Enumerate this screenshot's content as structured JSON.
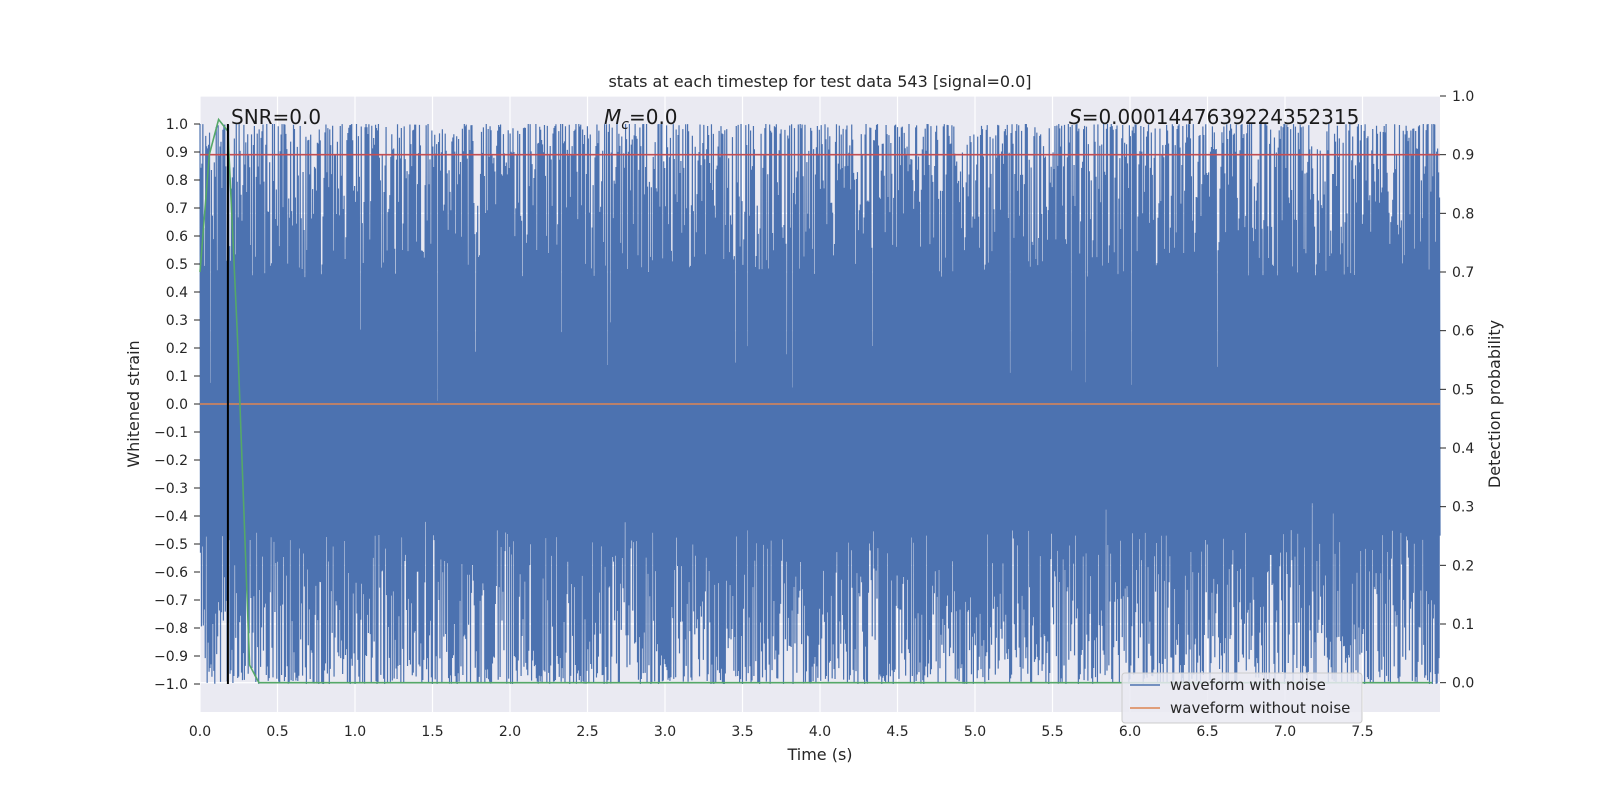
{
  "chart_data": {
    "type": "line",
    "title": "stats at each timestep for test data 543 [signal=0.0]",
    "xlabel": "Time (s)",
    "ylabel": "Whitened strain",
    "y2label": "Detection probability",
    "xlim": [
      0.0,
      8.0
    ],
    "ylim": [
      -1.1,
      1.1
    ],
    "y2lim": [
      -0.05,
      1.0
    ],
    "x_ticks": [
      "0.0",
      "0.5",
      "1.0",
      "1.5",
      "2.0",
      "2.5",
      "3.0",
      "3.5",
      "4.0",
      "4.5",
      "5.0",
      "5.5",
      "6.0",
      "6.5",
      "7.0",
      "7.5"
    ],
    "y_ticks": [
      "1.0",
      "0.9",
      "0.8",
      "0.7",
      "0.6",
      "0.5",
      "0.4",
      "0.3",
      "0.2",
      "0.1",
      "0.0",
      "−0.1",
      "−0.2",
      "−0.3",
      "−0.4",
      "−0.5",
      "−0.6",
      "−0.7",
      "−0.8",
      "−0.9",
      "−1.0"
    ],
    "y2_ticks": [
      "1.0",
      "0.9",
      "0.8",
      "0.7",
      "0.6",
      "0.5",
      "0.4",
      "0.3",
      "0.2",
      "0.1",
      "0.0"
    ],
    "grid": true,
    "legend_position": "lower-right",
    "annotations": {
      "snr": "SNR=0.0",
      "mc_symbol": "M",
      "mc_sub": "c",
      "mc_value": "=0.0",
      "s_symbol": "S",
      "s_value": "=0.0001447639224352315"
    },
    "marker_line_x": 0.18,
    "series": [
      {
        "name": "waveform with noise",
        "axis": "left",
        "color": "#4c72b0",
        "description_values": "dense whitened noise bounded in [-1, 1]",
        "x_range": [
          0.0,
          8.0
        ],
        "y_range": [
          -1.0,
          1.0
        ]
      },
      {
        "name": "waveform without noise",
        "axis": "left",
        "color": "#dd8452",
        "x": [
          0.0,
          8.0
        ],
        "y": [
          0.0,
          0.0
        ]
      },
      {
        "axis": "right",
        "color": "#55a868",
        "x": [
          0.0,
          0.06,
          0.12,
          0.18,
          0.24,
          0.32,
          0.38,
          1.0,
          2.0,
          3.0,
          4.0,
          5.0,
          6.0,
          7.0,
          7.95
        ],
        "y": [
          0.7,
          0.9,
          0.96,
          0.94,
          0.6,
          0.03,
          0.0,
          0.0,
          0.0,
          0.0,
          0.0,
          0.0,
          0.0,
          0.0,
          0.0
        ]
      },
      {
        "axis": "right",
        "color": "#c44e52",
        "x": [
          0.0,
          8.0
        ],
        "y": [
          0.9,
          0.9
        ]
      }
    ]
  }
}
